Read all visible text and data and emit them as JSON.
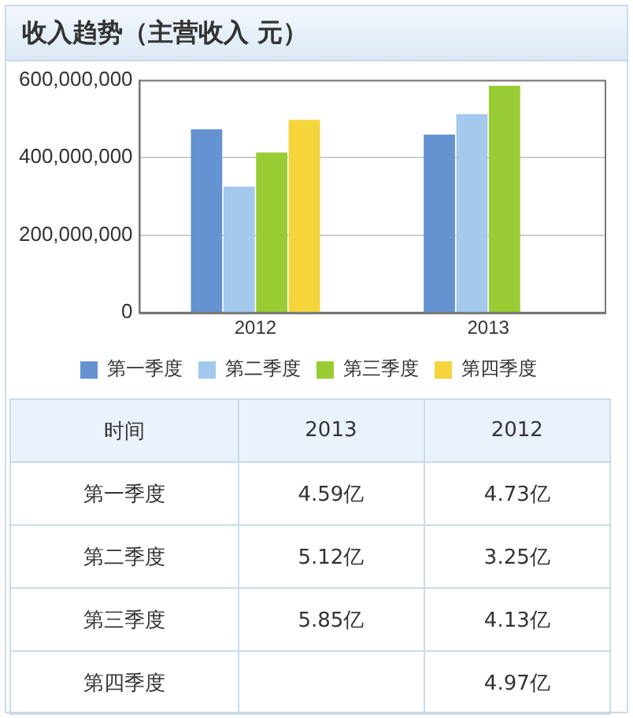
{
  "chart_data": [
    {
      "type": "bar",
      "title": "收入趋势（主营收入 元）",
      "categories": [
        "2012",
        "2013"
      ],
      "series": [
        {
          "name": "第一季度",
          "color": "#6592d0",
          "values": [
            473000000,
            459000000
          ]
        },
        {
          "name": "第二季度",
          "color": "#a3c9ec",
          "values": [
            325000000,
            512000000
          ]
        },
        {
          "name": "第三季度",
          "color": "#99cc33",
          "values": [
            413000000,
            585000000
          ]
        },
        {
          "name": "第四季度",
          "color": "#f5d43c",
          "values": [
            497000000,
            null
          ]
        }
      ],
      "ylim": [
        0,
        600000000
      ],
      "yticks": [
        0,
        {
          "value": 200000000,
          "label": "200,000,000"
        },
        {
          "value": 400000000,
          "label": "400,000,000"
        },
        {
          "value": 600000000,
          "label": "600,000,000"
        }
      ],
      "grid": "y",
      "legend": "bottom"
    },
    {
      "type": "heatmap",
      "annotations": [
        "时间"
      ],
      "categories": [
        "2013",
        "2012"
      ],
      "y_categories": [
        "第一季度",
        "第二季度",
        "第三季度",
        "第四季度"
      ],
      "cells": [
        [
          4.59,
          4.73
        ],
        [
          5.12,
          3.25
        ],
        [
          5.85,
          4.13
        ],
        [
          null,
          4.97
        ]
      ],
      "cell_labels": [
        [
          "4.59亿",
          "4.73亿"
        ],
        [
          "5.12亿",
          "3.25亿"
        ],
        [
          "5.85亿",
          "4.13亿"
        ],
        [
          null,
          "4.97亿"
        ]
      ]
    }
  ]
}
